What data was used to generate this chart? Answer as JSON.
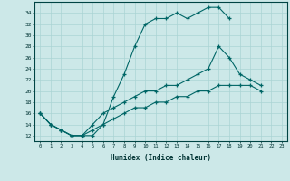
{
  "xlabel": "Humidex (Indice chaleur)",
  "bg_color": "#cce8e8",
  "grid_color": "#aad4d4",
  "line_color": "#006666",
  "line1": {
    "x": [
      0,
      1,
      2,
      3,
      4,
      5,
      6,
      7,
      8,
      9,
      10,
      11,
      12,
      13,
      14,
      15,
      16,
      17,
      18
    ],
    "y": [
      16,
      14,
      13,
      12,
      12,
      12,
      14,
      19,
      23,
      28,
      32,
      33,
      33,
      34,
      33,
      34,
      35,
      35,
      33
    ]
  },
  "line2": {
    "x": [
      0,
      1,
      2,
      3,
      4,
      5,
      6,
      7,
      8,
      9,
      10,
      11,
      12,
      13,
      14,
      15,
      16,
      17,
      18,
      19,
      20,
      21,
      22,
      23
    ],
    "y": [
      16,
      14,
      13,
      12,
      12,
      14,
      16,
      17,
      18,
      19,
      20,
      20,
      21,
      21,
      22,
      23,
      24,
      28,
      26,
      23,
      22,
      21,
      null,
      null
    ]
  },
  "line3": {
    "x": [
      0,
      1,
      2,
      3,
      4,
      5,
      6,
      7,
      8,
      9,
      10,
      11,
      12,
      13,
      14,
      15,
      16,
      17,
      18,
      19,
      20,
      21,
      22,
      23
    ],
    "y": [
      16,
      14,
      13,
      12,
      12,
      13,
      14,
      15,
      16,
      17,
      17,
      18,
      18,
      19,
      19,
      20,
      20,
      21,
      21,
      21,
      21,
      20,
      null,
      null
    ]
  },
  "ylim": [
    11,
    36
  ],
  "xlim": [
    -0.5,
    23.5
  ],
  "yticks": [
    12,
    14,
    16,
    18,
    20,
    22,
    24,
    26,
    28,
    30,
    32,
    34
  ],
  "xticks": [
    0,
    1,
    2,
    3,
    4,
    5,
    6,
    7,
    8,
    9,
    10,
    11,
    12,
    13,
    14,
    15,
    16,
    17,
    18,
    19,
    20,
    21,
    22,
    23
  ],
  "xtick_labels": [
    "0",
    "1",
    "2",
    "3",
    "4",
    "5",
    "6",
    "7",
    "8",
    "9",
    "10",
    "11",
    "12",
    "13",
    "14",
    "15",
    "16",
    "17",
    "18",
    "19",
    "20",
    "21",
    "22",
    "23"
  ]
}
